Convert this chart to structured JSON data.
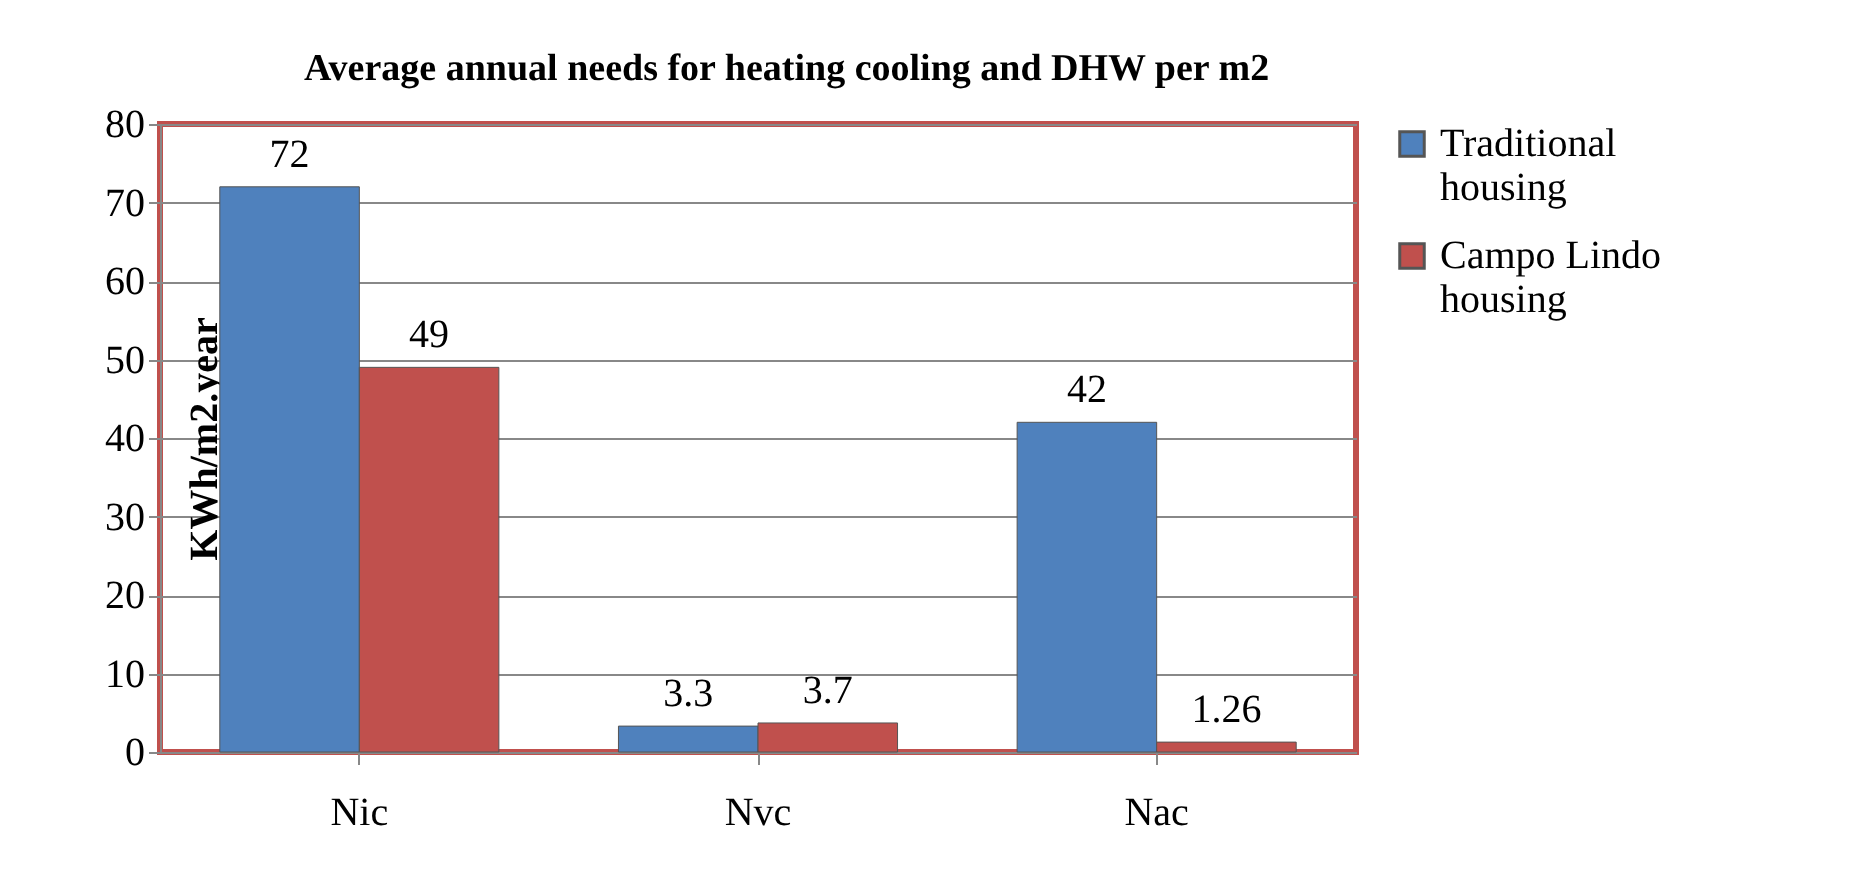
{
  "chart_data": {
    "type": "bar",
    "title": "Average annual needs for heating cooling and DHW per m2",
    "ylabel": "KWh/m2.year",
    "categories": [
      "Nic",
      "Nvc",
      "Nac"
    ],
    "series": [
      {
        "name": "Traditional housing",
        "color": "#4f81bd",
        "values": [
          72,
          3.3,
          42
        ]
      },
      {
        "name": "Campo Lindo housing",
        "color": "#c0504d",
        "values": [
          49,
          3.7,
          1.26
        ]
      }
    ],
    "ylim": [
      0,
      80
    ],
    "yticks": [
      0,
      10,
      20,
      30,
      40,
      50,
      60,
      70,
      80
    ],
    "grid": "y",
    "legend": "right",
    "data_labels": true
  }
}
